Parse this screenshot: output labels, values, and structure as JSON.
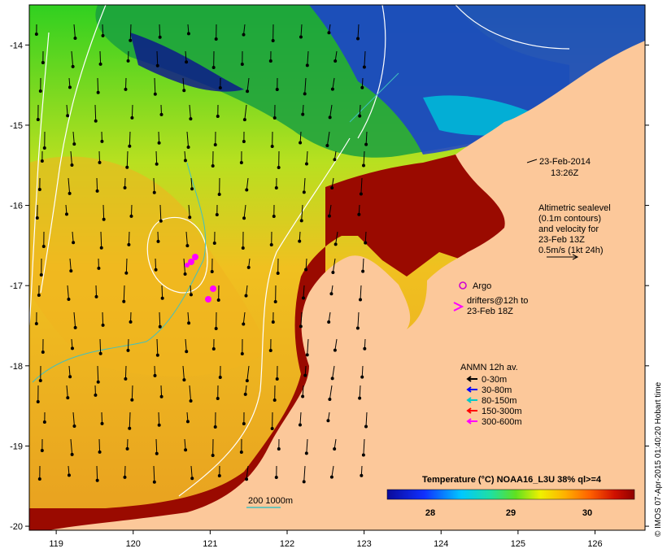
{
  "axes": {
    "x_ticks": [
      "119",
      "120",
      "121",
      "122",
      "123",
      "124",
      "125",
      "126"
    ],
    "y_ticks": [
      "-14",
      "-15",
      "-16",
      "-17",
      "-18",
      "-19",
      "-20"
    ],
    "x_range": [
      118.65,
      126.65
    ],
    "y_range": [
      -20.05,
      -13.5
    ]
  },
  "date_label": {
    "line1": "23-Feb-2014",
    "line2": "13:26Z"
  },
  "altimetry_note": [
    "Altimetric sealevel",
    "(0.1m contours)",
    "and velocity for",
    "23-Feb 13Z",
    "0.5m/s (1kt 24h)"
  ],
  "argo": {
    "label": "Argo",
    "color": "#d000d0"
  },
  "drifters": {
    "line1": "drifters@12h to",
    "line2": "23-Feb 18Z",
    "color": "#ff00ff"
  },
  "mooring_legend": {
    "title": "ANMN 12h av.",
    "items": [
      {
        "label": "0-30m",
        "color": "#000000"
      },
      {
        "label": "30-80m",
        "color": "#0000ff"
      },
      {
        "label": "80-150m",
        "color": "#00c8c8"
      },
      {
        "label": "150-300m",
        "color": "#ff0000"
      },
      {
        "label": "300-600m",
        "color": "#ff00ff"
      }
    ]
  },
  "scale_bar": {
    "title": "Temperature (°C) NOAA16_L3U 38% ql>=4",
    "ticks": [
      "28",
      "29",
      "30"
    ]
  },
  "depth_legend": {
    "label": "200 1000m",
    "color": "#40c0c0"
  },
  "credit": "© IMOS 07-Apr-2015 01:40:20 Hobart time",
  "colors": {
    "land": "#fcc89a",
    "frame": "#000000"
  }
}
